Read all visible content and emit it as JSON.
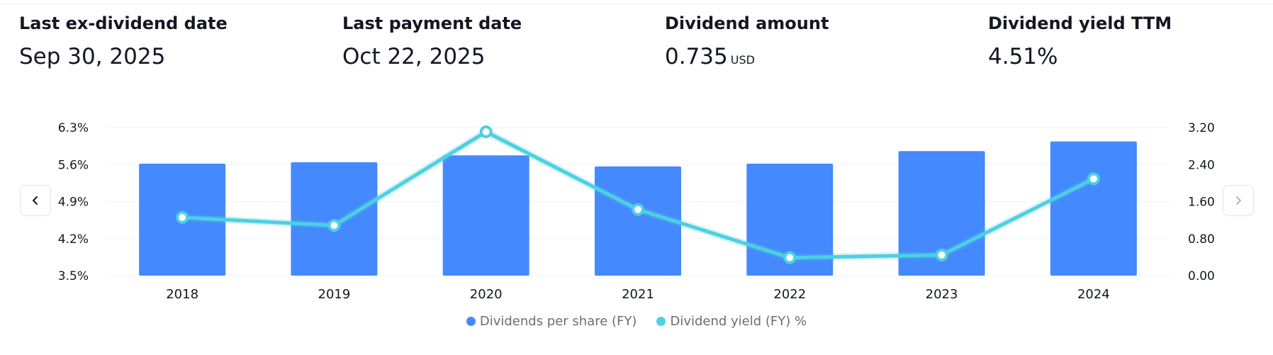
{
  "stats": [
    {
      "label": "Last ex-dividend date",
      "value": "Sep 30, 2025",
      "unit": ""
    },
    {
      "label": "Last payment date",
      "value": "Oct 22, 2025",
      "unit": ""
    },
    {
      "label": "Dividend amount",
      "value": "0.735",
      "unit": "USD"
    },
    {
      "label": "Dividend yield TTM",
      "value": "4.51%",
      "unit": ""
    }
  ],
  "nav": {
    "prev_icon": "chevron-left-icon",
    "next_icon": "chevron-right-icon"
  },
  "colors": {
    "bar": "#4589ff",
    "line": "#4dd0e1",
    "grid": "#f0f2f5",
    "text": "#131722",
    "muted": "#6a6d78"
  },
  "chart_data": {
    "type": "bar+line",
    "categories": [
      "2018",
      "2019",
      "2020",
      "2021",
      "2022",
      "2023",
      "2024"
    ],
    "series": [
      {
        "name": "Dividends per share (FY)",
        "type": "bar",
        "axis": "right",
        "color": "#4589ff",
        "values": [
          2.42,
          2.45,
          2.6,
          2.36,
          2.42,
          2.69,
          2.9
        ]
      },
      {
        "name": "Dividend yield (FY) %",
        "type": "line",
        "axis": "left",
        "color": "#4dd0e1",
        "values": [
          4.6,
          4.45,
          6.22,
          4.75,
          3.84,
          3.89,
          5.33
        ]
      }
    ],
    "left_axis": {
      "min": 3.5,
      "max": 6.3,
      "ticks": [
        "6.3%",
        "5.6%",
        "4.9%",
        "4.2%",
        "3.5%"
      ]
    },
    "right_axis": {
      "min": 0,
      "max": 3.2,
      "ticks": [
        "3.20",
        "2.40",
        "1.60",
        "0.80",
        "0.00"
      ]
    },
    "legend": [
      "Dividends per share (FY)",
      "Dividend yield (FY) %"
    ]
  }
}
